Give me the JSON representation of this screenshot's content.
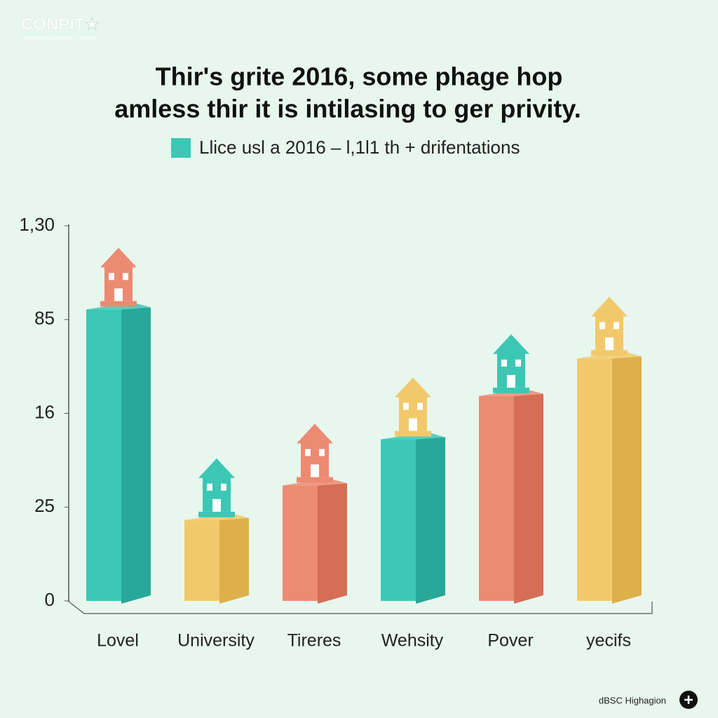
{
  "brand": {
    "logo": "CONPIT★",
    "tagline": "CENTR PROGRAMME CENTRE"
  },
  "chart_data": {
    "type": "bar3d",
    "title": "Thir's grite 2016, some phage hop",
    "subtitle": "amless thir it is intilasing to ger privity.",
    "legend_label": "Llice usl a 2016 – l,1l1 th + drifentations",
    "legend_color": "#3cc7b4",
    "categories": [
      "Lovel",
      "University",
      "Tirerеs",
      "Wehsity",
      "Pover",
      "yecifs"
    ],
    "values": [
      101,
      28,
      40,
      56,
      71,
      84
    ],
    "colors": [
      "#3cc7b4",
      "#f2c96a",
      "#ec8a72",
      "#3cc7b4",
      "#ec8a72",
      "#f2c96a"
    ],
    "side_colors": [
      "#27a898",
      "#ddb04c",
      "#d56e55",
      "#27a898",
      "#d56e55",
      "#ddb04c"
    ],
    "ylim": [
      0,
      130
    ],
    "yticks": [
      0,
      {
        "value": 32.5,
        "label": "25"
      },
      {
        "value": 65,
        "label": "16"
      },
      {
        "value": 97.5,
        "label": "85"
      },
      {
        "value": 130,
        "label": "1,30"
      }
    ]
  },
  "footer": "dBSC Highagion"
}
